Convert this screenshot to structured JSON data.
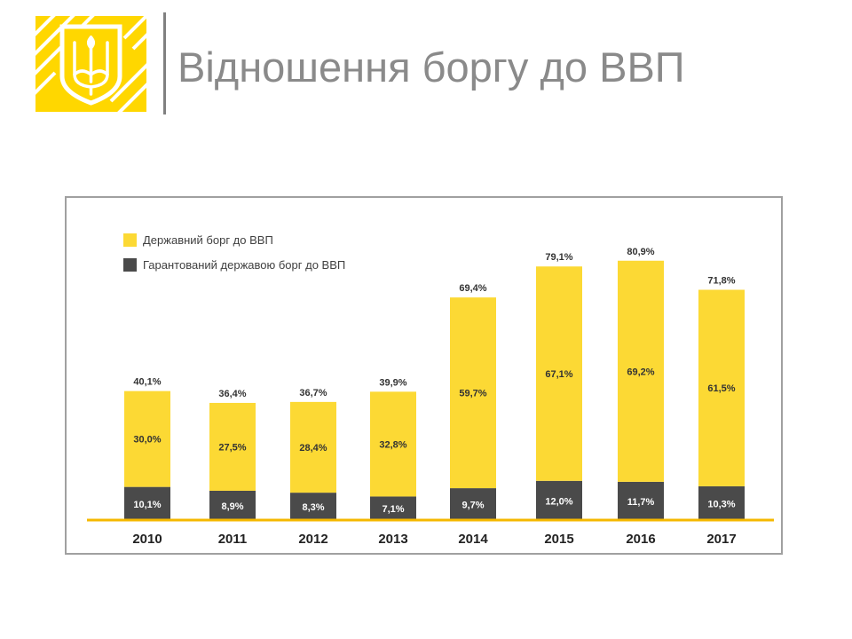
{
  "slide": {
    "title": "Відношення боргу до ВВП"
  },
  "colors": {
    "accent": "#FFD700",
    "state_debt": "#FCD934",
    "guaranteed_debt": "#4A4A4A",
    "baseline": "#F5B800",
    "title": "#8A8A8A"
  },
  "chart_data": {
    "type": "bar",
    "stacked": true,
    "title": "",
    "xlabel": "",
    "ylabel": "",
    "unit": "%",
    "ylim": [
      0,
      85
    ],
    "grid": false,
    "legend_position": "top-left",
    "categories": [
      "2010",
      "2011",
      "2012",
      "2013",
      "2014",
      "2015",
      "2016",
      "2017"
    ],
    "series": [
      {
        "name": "Гарантований державою борг до ВВП",
        "color": "#4A4A4A",
        "values": [
          10.1,
          8.9,
          8.3,
          7.1,
          9.7,
          12.0,
          11.7,
          10.3
        ],
        "labels": [
          "10,1%",
          "8,9%",
          "8,3%",
          "7,1%",
          "9,7%",
          "12,0%",
          "11,7%",
          "10,3%"
        ]
      },
      {
        "name": "Державний борг до ВВП",
        "color": "#FCD934",
        "values": [
          30.0,
          27.5,
          28.4,
          32.8,
          59.7,
          67.1,
          69.2,
          61.5
        ],
        "labels": [
          "30,0%",
          "27,5%",
          "28,4%",
          "32,8%",
          "59,7%",
          "67,1%",
          "69,2%",
          "61,5%"
        ]
      }
    ],
    "totals": [
      40.1,
      36.4,
      36.7,
      39.9,
      69.4,
      79.1,
      80.9,
      71.8
    ],
    "total_labels": [
      "40,1%",
      "36,4%",
      "36,7%",
      "39,9%",
      "69,4%",
      "79,1%",
      "80,9%",
      "71,8%"
    ],
    "legend": [
      {
        "name": "Державний борг до ВВП",
        "color": "#FCD934"
      },
      {
        "name": "Гарантований державою борг до ВВП",
        "color": "#4A4A4A"
      }
    ]
  }
}
